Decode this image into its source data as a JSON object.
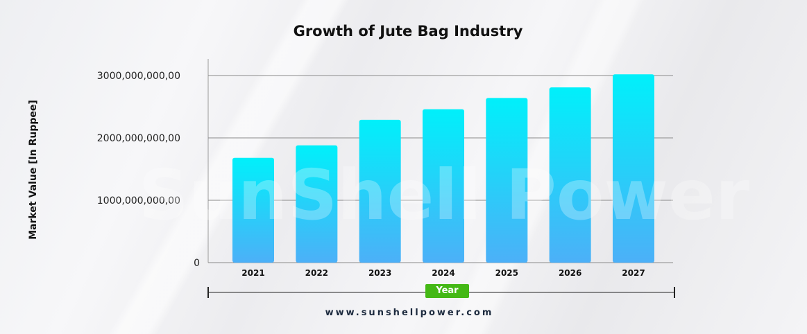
{
  "chart_data": {
    "type": "bar",
    "title": "Growth of Jute Bag Industry",
    "xlabel": "Year",
    "ylabel": "Market Value [In Ruppee]",
    "categories": [
      "2021",
      "2022",
      "2023",
      "2024",
      "2025",
      "2026",
      "2027"
    ],
    "values": [
      1680000000,
      1880000000,
      2290000000,
      2460000000,
      2640000000,
      2810000000,
      3020000000
    ],
    "ylim": [
      0,
      3000000000
    ],
    "yticks": [
      {
        "value": 0,
        "label": "0"
      },
      {
        "value": 1000000000,
        "label": "1000,000,000,00"
      },
      {
        "value": 2000000000,
        "label": "2000,000,000,00"
      },
      {
        "value": 3000000000,
        "label": "3000,000,000,00"
      }
    ],
    "grid": true,
    "bar_gradient": [
      "#00f0fa",
      "#4cb0f8"
    ],
    "watermark": "SunShell Power"
  },
  "footer": {
    "website": "www.sunshellpower.com"
  }
}
